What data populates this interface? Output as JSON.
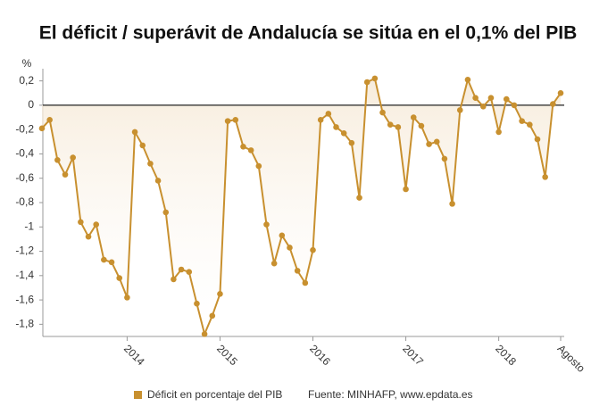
{
  "chart_data": {
    "type": "line",
    "title": "El déficit / superávit de Andalucía se sitúa en el 0,1% del PIB",
    "y_unit": "%",
    "categories": [
      null,
      null,
      null,
      null,
      null,
      null,
      null,
      null,
      null,
      null,
      null,
      "2014",
      null,
      null,
      null,
      null,
      null,
      null,
      null,
      null,
      null,
      null,
      null,
      "2015",
      null,
      null,
      null,
      null,
      null,
      null,
      null,
      null,
      null,
      null,
      null,
      "2016",
      null,
      null,
      null,
      null,
      null,
      null,
      null,
      null,
      null,
      null,
      null,
      "2017",
      null,
      null,
      null,
      null,
      null,
      null,
      null,
      null,
      null,
      null,
      null,
      "2018",
      null,
      null,
      null,
      null,
      null,
      null,
      null,
      "Agosto"
    ],
    "series": [
      {
        "name": "Déficit en porcentaje del PIB",
        "color": "#c8902f",
        "values": [
          -0.19,
          -0.12,
          -0.45,
          -0.57,
          -0.43,
          -0.96,
          -1.08,
          -0.98,
          -1.27,
          -1.29,
          -1.42,
          -1.58,
          -0.22,
          -0.33,
          -0.48,
          -0.62,
          -0.88,
          -1.43,
          -1.35,
          -1.37,
          -1.63,
          -1.88,
          -1.73,
          -1.55,
          -0.13,
          -0.12,
          -0.34,
          -0.37,
          -0.5,
          -0.98,
          -1.3,
          -1.07,
          -1.17,
          -1.36,
          -1.46,
          -1.19,
          -0.12,
          -0.07,
          -0.18,
          -0.23,
          -0.31,
          -0.76,
          0.19,
          0.22,
          -0.06,
          -0.16,
          -0.18,
          -0.69,
          -0.1,
          -0.17,
          -0.32,
          -0.3,
          -0.44,
          -0.81,
          -0.04,
          0.21,
          0.06,
          -0.01,
          0.06,
          -0.22,
          0.05,
          0.0,
          -0.13,
          -0.16,
          -0.28,
          -0.59,
          0.01,
          0.1
        ]
      }
    ],
    "ylim": [
      -1.9,
      0.3
    ],
    "yticks": [
      {
        "value": 0.2,
        "label": "0,2"
      },
      0,
      {
        "value": -0.2,
        "label": "-0,2"
      },
      {
        "value": -0.4,
        "label": "-0,4"
      },
      {
        "value": -0.6,
        "label": "-0,6"
      },
      {
        "value": -0.8,
        "label": "-0,8"
      },
      {
        "value": -1,
        "label": "-1"
      },
      {
        "value": -1.2,
        "label": "-1,2"
      },
      {
        "value": -1.4,
        "label": "-1,4"
      },
      {
        "value": -1.6,
        "label": "-1,6"
      },
      {
        "value": -1.8,
        "label": "-1,8"
      }
    ],
    "source": "Fuente: MINHAFP, www.epdata.es"
  }
}
